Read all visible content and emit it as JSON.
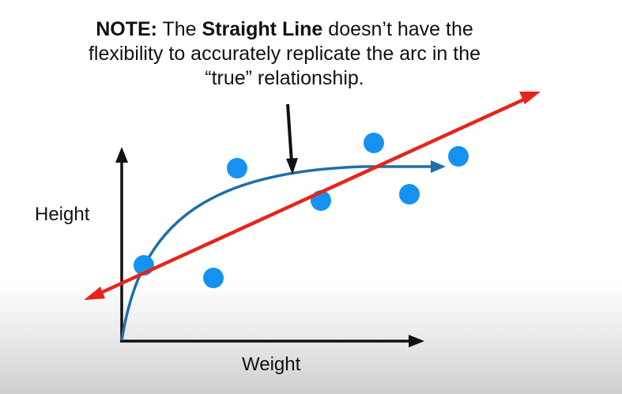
{
  "note": {
    "prefix": "NOTE:",
    "text1": " The ",
    "bold": "Straight Line",
    "text2": " doesn’t have the flexibility to accurately replicate the arc in the “true” relationship."
  },
  "axes": {
    "ylabel": "Height",
    "xlabel": "Weight"
  },
  "colors": {
    "points": "#1592f0",
    "true_curve": "#1f6fa6",
    "straight_line": "#e5251b",
    "axes": "#111111",
    "pointer": "#111111"
  }
}
